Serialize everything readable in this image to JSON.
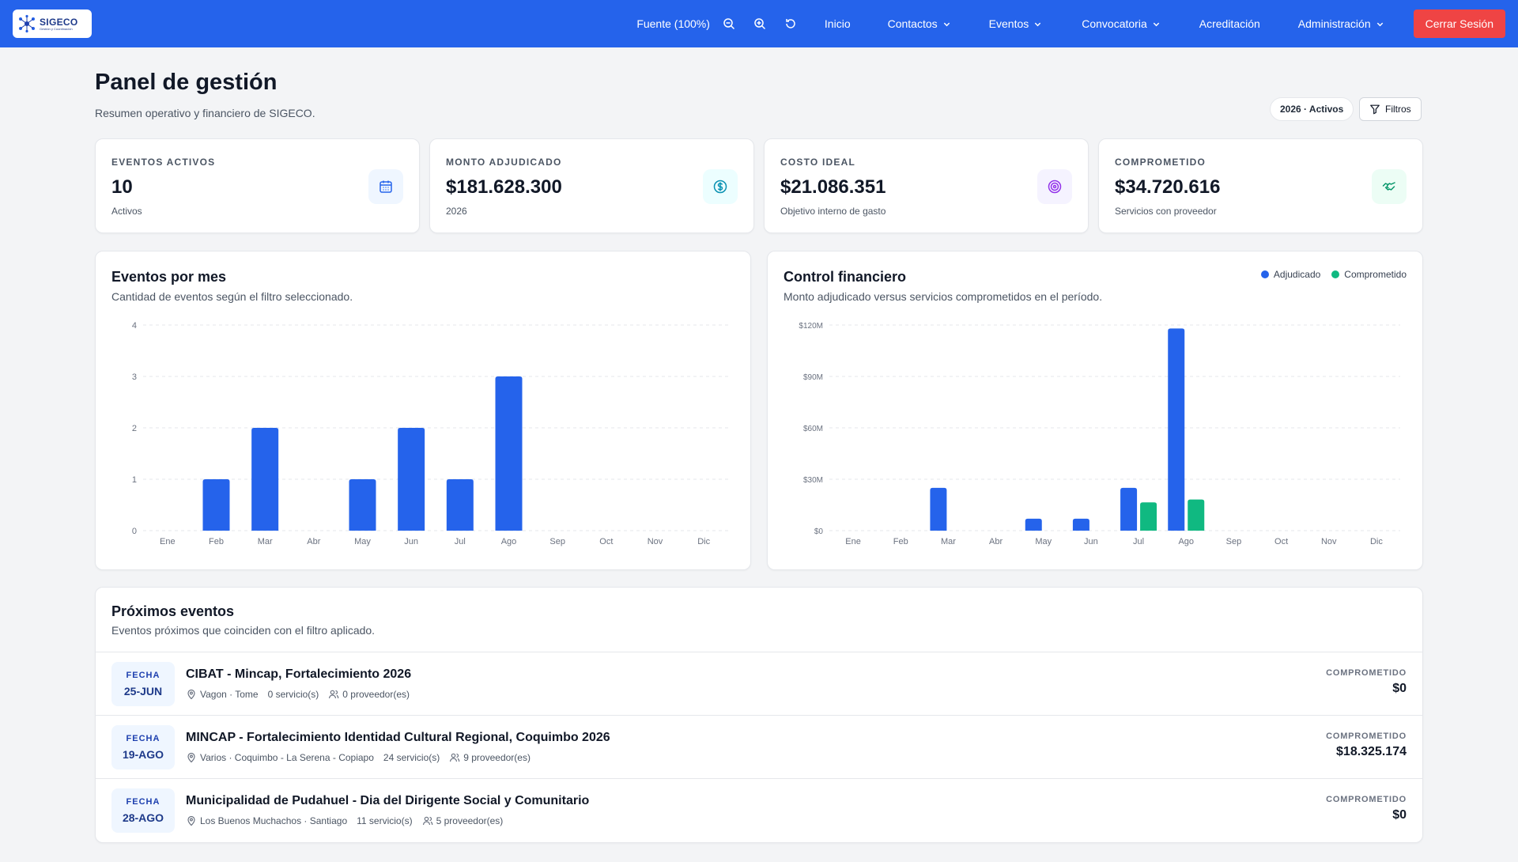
{
  "nav": {
    "logo_name": "SIGECO",
    "logo_sub": "Gestión y Coordinación",
    "font_label": "Fuente (100%)",
    "items": [
      "Inicio",
      "Contactos",
      "Eventos",
      "Convocatoria",
      "Acreditación",
      "Administración"
    ],
    "logout": "Cerrar Sesión"
  },
  "header": {
    "title": "Panel de gestión",
    "subtitle": "Resumen operativo y financiero de SIGECO.",
    "filter_pill": "2026 · Activos",
    "filters_btn": "Filtros"
  },
  "kpis": [
    {
      "label": "EVENTOS ACTIVOS",
      "value": "10",
      "sub": "Activos",
      "icon": "calendar-icon",
      "color": "#2563eb",
      "bg": "#eff6ff"
    },
    {
      "label": "MONTO ADJUDICADO",
      "value": "$181.628.300",
      "sub": "2026",
      "icon": "dollar-icon",
      "color": "#0891b2",
      "bg": "#ecfeff"
    },
    {
      "label": "COSTO IDEAL",
      "value": "$21.086.351",
      "sub": "Objetivo interno de gasto",
      "icon": "target-icon",
      "color": "#9333ea",
      "bg": "#f5f3ff"
    },
    {
      "label": "COMPROMETIDO",
      "value": "$34.720.616",
      "sub": "Servicios con proveedor",
      "icon": "handshake-icon",
      "color": "#059669",
      "bg": "#ecfdf5"
    }
  ],
  "charts": {
    "events": {
      "title": "Eventos por mes",
      "subtitle": "Cantidad de eventos según el filtro seleccionado."
    },
    "finance": {
      "title": "Control financiero",
      "subtitle": "Monto adjudicado versus servicios comprometidos en el período.",
      "legend": [
        "Adjudicado",
        "Comprometido"
      ]
    }
  },
  "chart_data": [
    {
      "type": "bar",
      "categories": [
        "Ene",
        "Feb",
        "Mar",
        "Abr",
        "May",
        "Jun",
        "Jul",
        "Ago",
        "Sep",
        "Oct",
        "Nov",
        "Dic"
      ],
      "values": [
        0,
        1,
        2,
        0,
        1,
        2,
        1,
        3,
        0,
        0,
        0,
        0
      ],
      "ylim": [
        0,
        4
      ],
      "yticks": [
        "0",
        "1",
        "2",
        "3",
        "4"
      ],
      "color": "#2563eb",
      "grid": true
    },
    {
      "type": "bar",
      "categories": [
        "Ene",
        "Feb",
        "Mar",
        "Abr",
        "May",
        "Jun",
        "Jul",
        "Ago",
        "Sep",
        "Oct",
        "Nov",
        "Dic"
      ],
      "series": [
        {
          "name": "Adjudicado",
          "color": "#2563eb",
          "values": [
            0,
            0,
            25,
            0,
            7,
            7,
            25,
            118,
            0,
            0,
            0,
            0
          ]
        },
        {
          "name": "Comprometido",
          "color": "#10b981",
          "values": [
            0,
            0,
            0,
            0,
            0,
            0,
            16.5,
            18.2,
            0,
            0,
            0,
            0
          ]
        }
      ],
      "ylim": [
        0,
        120
      ],
      "yticks": [
        "$0",
        "$30M",
        "$60M",
        "$90M",
        "$120M"
      ],
      "legend_position": "top-right",
      "grid": true
    }
  ],
  "upcoming": {
    "title": "Próximos eventos",
    "subtitle": "Eventos próximos que coinciden con el filtro aplicado.",
    "date_label": "FECHA",
    "right_label": "COMPROMETIDO",
    "events": [
      {
        "date": "25-JUN",
        "title": "CIBAT - Mincap, Fortalecimiento 2026",
        "place": "Vagon · Tome",
        "services": "0 servicio(s)",
        "providers": "0 proveedor(es)",
        "committed": "$0"
      },
      {
        "date": "19-AGO",
        "title": "MINCAP - Fortalecimiento Identidad Cultural Regional, Coquimbo 2026",
        "place": "Varios · Coquimbo - La Serena - Copiapo",
        "services": "24 servicio(s)",
        "providers": "9 proveedor(es)",
        "committed": "$18.325.174"
      },
      {
        "date": "28-AGO",
        "title": "Municipalidad de Pudahuel - Dia del Dirigente Social y Comunitario",
        "place": "Los Buenos Muchachos · Santiago",
        "services": "11 servicio(s)",
        "providers": "5 proveedor(es)",
        "committed": "$0"
      }
    ]
  }
}
